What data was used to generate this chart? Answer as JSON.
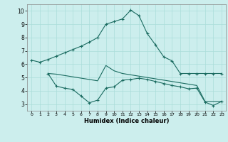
{
  "xlabel": "Humidex (Indice chaleur)",
  "bg_color": "#cceeed",
  "grid_color": "#aaddda",
  "line_color": "#1a6b60",
  "xlim": [
    -0.5,
    23.5
  ],
  "ylim": [
    2.5,
    10.5
  ],
  "xticks": [
    0,
    1,
    2,
    3,
    4,
    5,
    6,
    7,
    8,
    9,
    10,
    11,
    12,
    13,
    14,
    15,
    16,
    17,
    18,
    19,
    20,
    21,
    22,
    23
  ],
  "yticks": [
    3,
    4,
    5,
    6,
    7,
    8,
    9,
    10
  ],
  "line1_x": [
    0,
    1,
    2,
    3,
    4,
    5,
    6,
    7,
    8,
    9,
    10,
    11,
    12,
    13,
    14,
    15,
    16,
    17,
    18,
    19,
    20,
    21,
    22,
    23
  ],
  "line1_y": [
    6.3,
    6.15,
    6.35,
    6.6,
    6.85,
    7.1,
    7.35,
    7.65,
    8.0,
    9.0,
    9.2,
    9.4,
    10.05,
    9.65,
    8.3,
    7.45,
    6.55,
    6.25,
    5.3,
    5.3,
    5.3,
    5.3,
    5.3,
    5.3
  ],
  "line2_x": [
    2,
    3,
    4,
    5,
    6,
    7,
    8,
    9,
    10,
    11,
    12,
    13,
    14,
    15,
    16,
    17,
    18,
    19,
    20,
    21,
    22,
    23
  ],
  "line2_y": [
    5.3,
    4.35,
    4.2,
    4.1,
    3.6,
    3.1,
    3.3,
    4.2,
    4.3,
    4.8,
    4.85,
    4.95,
    4.85,
    4.7,
    4.55,
    4.4,
    4.3,
    4.15,
    4.2,
    3.15,
    2.9,
    3.2
  ],
  "line3_x": [
    2,
    3,
    4,
    5,
    6,
    7,
    8,
    9,
    10,
    11,
    12,
    13,
    14,
    15,
    16,
    17,
    18,
    19,
    20,
    21,
    22,
    23
  ],
  "line3_y": [
    5.3,
    5.25,
    5.15,
    5.05,
    4.95,
    4.85,
    4.75,
    5.9,
    5.5,
    5.3,
    5.2,
    5.1,
    5.0,
    4.9,
    4.8,
    4.7,
    4.6,
    4.5,
    4.4,
    3.2,
    3.2,
    3.2
  ]
}
